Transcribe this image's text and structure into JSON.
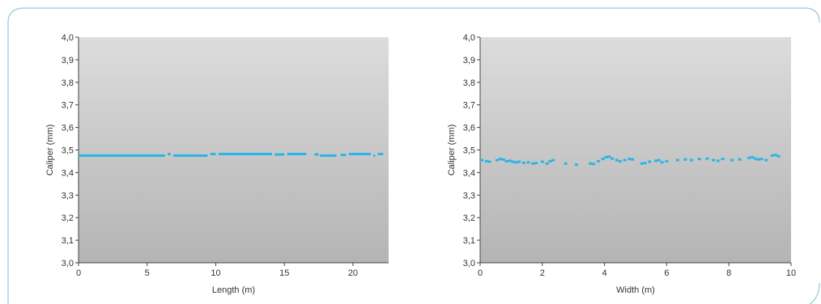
{
  "colors": {
    "frame": "#a9d3e3",
    "series": "#2bb4e6",
    "plot_top": "#dcdcdc",
    "plot_bottom": "#b4b4b4"
  },
  "chart_data": [
    {
      "type": "scatter",
      "title": "",
      "xlabel": "Length (m)",
      "ylabel": "Caliper (mm)",
      "xlim": [
        0,
        22.6
      ],
      "ylim": [
        3.0,
        4.0
      ],
      "x_ticks": [
        "0",
        "5",
        "10",
        "15",
        "20"
      ],
      "y_ticks": [
        "3,0",
        "3,1",
        "3,2",
        "3,3",
        "3,4",
        "3,5",
        "3,6",
        "3,7",
        "3,8",
        "3,9",
        "4,0"
      ],
      "grid": false,
      "series": [
        {
          "segments": [
            {
              "x1": 0.0,
              "x2": 6.3,
              "y": 3.475
            },
            {
              "x1": 6.5,
              "x2": 6.7,
              "y": 3.482
            },
            {
              "x1": 6.9,
              "x2": 9.4,
              "y": 3.475
            },
            {
              "x1": 9.6,
              "x2": 10.0,
              "y": 3.482
            },
            {
              "x1": 10.2,
              "x2": 14.1,
              "y": 3.482
            },
            {
              "x1": 14.3,
              "x2": 15.0,
              "y": 3.48
            },
            {
              "x1": 15.2,
              "x2": 16.6,
              "y": 3.482
            },
            {
              "x1": 17.2,
              "x2": 17.5,
              "y": 3.48
            },
            {
              "x1": 17.6,
              "x2": 18.8,
              "y": 3.475
            },
            {
              "x1": 19.1,
              "x2": 19.5,
              "y": 3.478
            },
            {
              "x1": 19.7,
              "x2": 21.3,
              "y": 3.482
            },
            {
              "x1": 21.5,
              "x2": 21.6,
              "y": 3.475
            },
            {
              "x1": 21.8,
              "x2": 22.2,
              "y": 3.482
            }
          ]
        }
      ]
    },
    {
      "type": "scatter",
      "title": "",
      "xlabel": "Width (m)",
      "ylabel": "Caliper (mm)",
      "xlim": [
        0,
        10
      ],
      "ylim": [
        3.0,
        4.0
      ],
      "x_ticks": [
        "0",
        "2",
        "4",
        "6",
        "8",
        "10"
      ],
      "y_ticks": [
        "3,0",
        "3,1",
        "3,2",
        "3,3",
        "3,4",
        "3,5",
        "3,6",
        "3,7",
        "3,8",
        "3,9",
        "4,0"
      ],
      "grid": false,
      "series": [
        {
          "points": [
            {
              "x": 0.05,
              "y": 3.455
            },
            {
              "x": 0.2,
              "y": 3.45
            },
            {
              "x": 0.3,
              "y": 3.448
            },
            {
              "x": 0.55,
              "y": 3.455
            },
            {
              "x": 0.65,
              "y": 3.46
            },
            {
              "x": 0.75,
              "y": 3.458
            },
            {
              "x": 0.85,
              "y": 3.45
            },
            {
              "x": 0.95,
              "y": 3.452
            },
            {
              "x": 1.05,
              "y": 3.448
            },
            {
              "x": 1.15,
              "y": 3.445
            },
            {
              "x": 1.25,
              "y": 3.448
            },
            {
              "x": 1.4,
              "y": 3.443
            },
            {
              "x": 1.55,
              "y": 3.445
            },
            {
              "x": 1.7,
              "y": 3.44
            },
            {
              "x": 1.8,
              "y": 3.442
            },
            {
              "x": 2.0,
              "y": 3.448
            },
            {
              "x": 2.15,
              "y": 3.44
            },
            {
              "x": 2.25,
              "y": 3.45
            },
            {
              "x": 2.35,
              "y": 3.455
            },
            {
              "x": 2.75,
              "y": 3.44
            },
            {
              "x": 3.1,
              "y": 3.435
            },
            {
              "x": 3.55,
              "y": 3.44
            },
            {
              "x": 3.65,
              "y": 3.438
            },
            {
              "x": 3.8,
              "y": 3.45
            },
            {
              "x": 3.95,
              "y": 3.46
            },
            {
              "x": 4.05,
              "y": 3.468
            },
            {
              "x": 4.15,
              "y": 3.47
            },
            {
              "x": 4.25,
              "y": 3.462
            },
            {
              "x": 4.4,
              "y": 3.455
            },
            {
              "x": 4.5,
              "y": 3.45
            },
            {
              "x": 4.65,
              "y": 3.455
            },
            {
              "x": 4.8,
              "y": 3.46
            },
            {
              "x": 4.9,
              "y": 3.458
            },
            {
              "x": 5.2,
              "y": 3.44
            },
            {
              "x": 5.3,
              "y": 3.442
            },
            {
              "x": 5.45,
              "y": 3.448
            },
            {
              "x": 5.65,
              "y": 3.452
            },
            {
              "x": 5.75,
              "y": 3.455
            },
            {
              "x": 5.85,
              "y": 3.445
            },
            {
              "x": 6.0,
              "y": 3.45
            },
            {
              "x": 6.35,
              "y": 3.455
            },
            {
              "x": 6.6,
              "y": 3.458
            },
            {
              "x": 6.8,
              "y": 3.455
            },
            {
              "x": 7.05,
              "y": 3.46
            },
            {
              "x": 7.3,
              "y": 3.462
            },
            {
              "x": 7.5,
              "y": 3.455
            },
            {
              "x": 7.65,
              "y": 3.452
            },
            {
              "x": 7.8,
              "y": 3.46
            },
            {
              "x": 8.1,
              "y": 3.455
            },
            {
              "x": 8.35,
              "y": 3.458
            },
            {
              "x": 8.65,
              "y": 3.465
            },
            {
              "x": 8.75,
              "y": 3.468
            },
            {
              "x": 8.85,
              "y": 3.462
            },
            {
              "x": 8.95,
              "y": 3.458
            },
            {
              "x": 9.05,
              "y": 3.46
            },
            {
              "x": 9.2,
              "y": 3.455
            },
            {
              "x": 9.4,
              "y": 3.475
            },
            {
              "x": 9.5,
              "y": 3.478
            },
            {
              "x": 9.6,
              "y": 3.472
            }
          ]
        }
      ]
    }
  ]
}
